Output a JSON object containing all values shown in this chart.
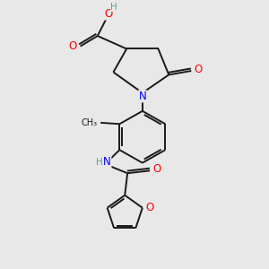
{
  "bg_color": "#e8e8e8",
  "bond_color": "#1a1a1a",
  "bond_width": 1.4,
  "atom_colors": {
    "C": "#1a1a1a",
    "H": "#5f9ea0",
    "N": "#0000ff",
    "O": "#ff0000"
  },
  "font_size_atom": 8.5,
  "font_size_H": 7.5
}
